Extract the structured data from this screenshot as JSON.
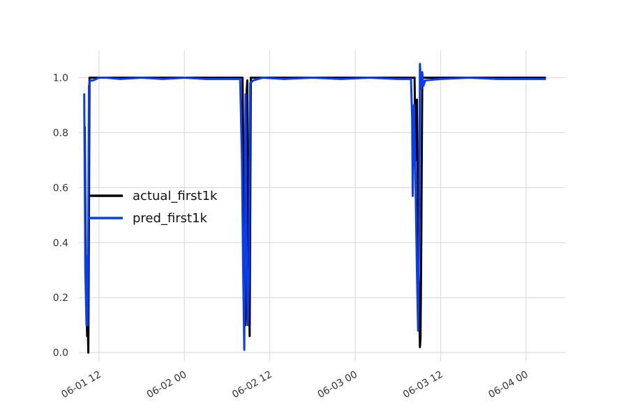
{
  "chart_data": {
    "type": "line",
    "title": "",
    "xlabel": "",
    "ylabel": "",
    "grid": true,
    "legend_position": "center-left",
    "x_axis": {
      "kind": "datetime",
      "range": [
        "2024-06-01T09:10",
        "2024-06-04T05:30"
      ],
      "ticks": [
        "06-01 12",
        "06-02 00",
        "06-02 12",
        "06-03 00",
        "06-03 12",
        "06-04 00"
      ],
      "tick_values": [
        "2024-06-01T12:00",
        "2024-06-02T00:00",
        "2024-06-02T12:00",
        "2024-06-03T00:00",
        "2024-06-03T12:00",
        "2024-06-04T00:00"
      ]
    },
    "y_axis": {
      "range": [
        -0.03,
        1.1
      ],
      "ticks": [
        "0.0",
        "0.2",
        "0.4",
        "0.6",
        "0.8",
        "1.0"
      ],
      "tick_values": [
        0.0,
        0.2,
        0.4,
        0.6,
        0.8,
        1.0
      ]
    },
    "series": [
      {
        "name": "actual_first1k",
        "color": "#000000",
        "points": [
          [
            "2024-06-01T10:00",
            0.82
          ],
          [
            "2024-06-01T10:10",
            0.25
          ],
          [
            "2024-06-01T10:20",
            0.06
          ],
          [
            "2024-06-01T10:25",
            0.09
          ],
          [
            "2024-06-01T10:30",
            0.0
          ],
          [
            "2024-06-01T10:35",
            0.5
          ],
          [
            "2024-06-01T10:40",
            1.0
          ],
          [
            "2024-06-01T11:00",
            1.0
          ],
          [
            "2024-06-02T08:00",
            1.0
          ],
          [
            "2024-06-02T08:10",
            1.0
          ],
          [
            "2024-06-02T08:20",
            0.6
          ],
          [
            "2024-06-02T08:35",
            0.1
          ],
          [
            "2024-06-02T08:45",
            0.95
          ],
          [
            "2024-06-02T08:50",
            0.99
          ],
          [
            "2024-06-02T09:00",
            0.4
          ],
          [
            "2024-06-02T09:10",
            0.06
          ],
          [
            "2024-06-02T09:20",
            1.0
          ],
          [
            "2024-06-03T08:00",
            1.0
          ],
          [
            "2024-06-03T08:20",
            1.0
          ],
          [
            "2024-06-03T08:30",
            0.7
          ],
          [
            "2024-06-03T08:40",
            0.92
          ],
          [
            "2024-06-03T08:55",
            0.3
          ],
          [
            "2024-06-03T09:05",
            0.02
          ],
          [
            "2024-06-03T09:10",
            0.05
          ],
          [
            "2024-06-03T09:15",
            0.3
          ],
          [
            "2024-06-03T09:25",
            0.97
          ],
          [
            "2024-06-03T09:30",
            1.0
          ],
          [
            "2024-06-04T02:40",
            1.0
          ]
        ]
      },
      {
        "name": "pred_first1k",
        "color": "#0a3cf0",
        "points": [
          [
            "2024-06-01T09:55",
            0.94
          ],
          [
            "2024-06-01T10:05",
            0.3
          ],
          [
            "2024-06-01T10:15",
            0.1
          ],
          [
            "2024-06-01T10:20",
            0.35
          ],
          [
            "2024-06-01T10:25",
            0.1
          ],
          [
            "2024-06-01T10:35",
            0.97
          ],
          [
            "2024-06-01T10:45",
            0.99
          ],
          [
            "2024-06-01T11:10",
            0.99
          ],
          [
            "2024-06-01T12:00",
            1.0
          ],
          [
            "2024-06-01T13:00",
            1.0
          ],
          [
            "2024-06-01T15:00",
            0.995
          ],
          [
            "2024-06-01T18:00",
            1.0
          ],
          [
            "2024-06-01T21:00",
            0.995
          ],
          [
            "2024-06-02T00:00",
            1.0
          ],
          [
            "2024-06-02T03:00",
            0.995
          ],
          [
            "2024-06-02T06:00",
            0.995
          ],
          [
            "2024-06-02T07:50",
            0.995
          ],
          [
            "2024-06-02T08:05",
            0.7
          ],
          [
            "2024-06-02T08:15",
            0.3
          ],
          [
            "2024-06-02T08:25",
            0.01
          ],
          [
            "2024-06-02T08:35",
            0.94
          ],
          [
            "2024-06-02T08:45",
            0.3
          ],
          [
            "2024-06-02T08:55",
            0.1
          ],
          [
            "2024-06-02T09:05",
            0.3
          ],
          [
            "2024-06-02T09:15",
            0.98
          ],
          [
            "2024-06-02T09:40",
            0.99
          ],
          [
            "2024-06-02T11:00",
            1.0
          ],
          [
            "2024-06-02T14:00",
            0.995
          ],
          [
            "2024-06-02T18:00",
            1.0
          ],
          [
            "2024-06-02T22:00",
            0.995
          ],
          [
            "2024-06-03T02:00",
            1.0
          ],
          [
            "2024-06-03T06:00",
            0.995
          ],
          [
            "2024-06-03T07:50",
            0.995
          ],
          [
            "2024-06-03T08:00",
            0.85
          ],
          [
            "2024-06-03T08:05",
            0.57
          ],
          [
            "2024-06-03T08:15",
            0.9
          ],
          [
            "2024-06-03T08:25",
            0.7
          ],
          [
            "2024-06-03T08:40",
            0.3
          ],
          [
            "2024-06-03T08:50",
            0.08
          ],
          [
            "2024-06-03T09:00",
            0.5
          ],
          [
            "2024-06-03T09:05",
            1.05
          ],
          [
            "2024-06-03T09:15",
            0.96
          ],
          [
            "2024-06-03T09:25",
            1.02
          ],
          [
            "2024-06-03T09:35",
            0.97
          ],
          [
            "2024-06-03T09:50",
            0.99
          ],
          [
            "2024-06-03T12:00",
            0.995
          ],
          [
            "2024-06-03T16:00",
            1.0
          ],
          [
            "2024-06-03T20:00",
            0.995
          ],
          [
            "2024-06-04T00:00",
            0.995
          ],
          [
            "2024-06-04T02:40",
            0.995
          ]
        ]
      }
    ]
  }
}
